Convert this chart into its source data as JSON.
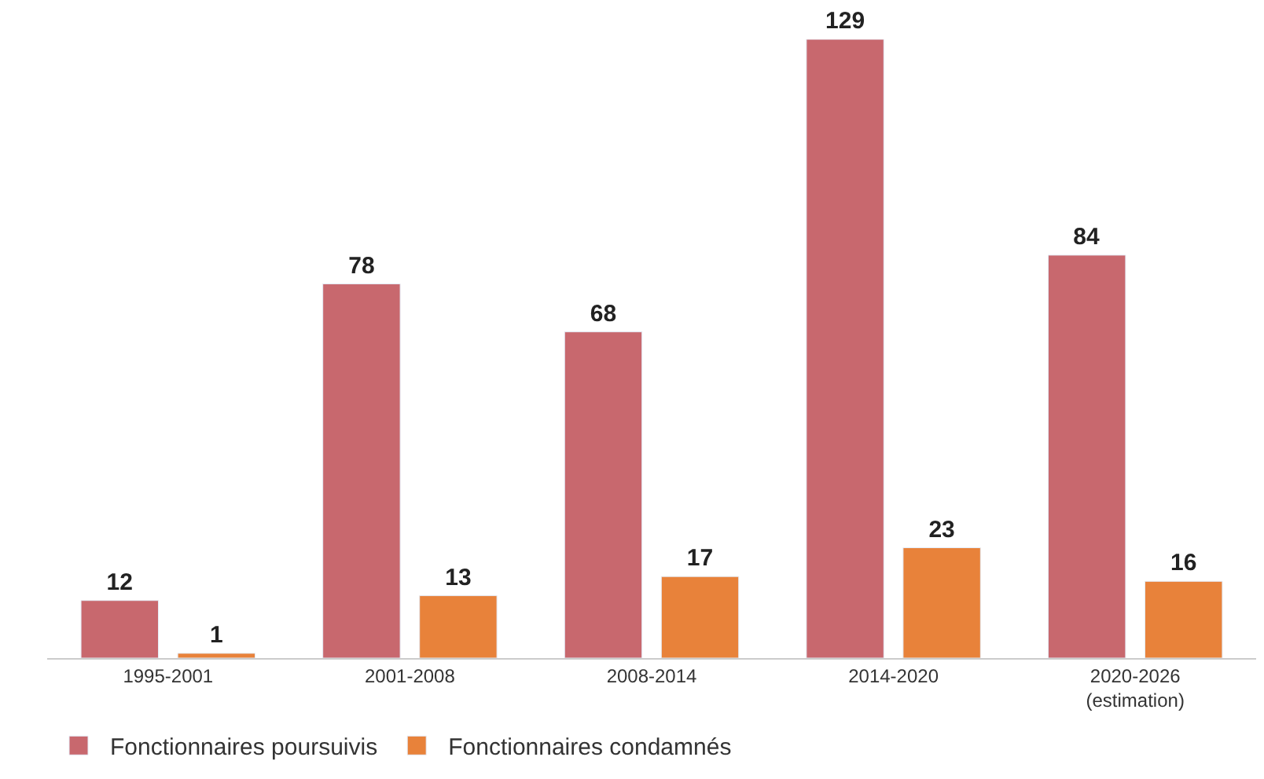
{
  "chart_data": {
    "type": "bar",
    "categories": [
      "1995-2001",
      "2001-2008",
      "2008-2014",
      "2014-2020",
      "2020-2026\n(estimation)"
    ],
    "series": [
      {
        "name": "Fonctionnaires poursuivis",
        "color": "#c8686e",
        "values": [
          12,
          78,
          68,
          129,
          84
        ]
      },
      {
        "name": "Fonctionnaires condamnés",
        "color": "#e8823a",
        "values": [
          1,
          13,
          17,
          23,
          16
        ]
      }
    ],
    "data_labels": true,
    "legend": "bottom left",
    "tick_labels": "x"
  }
}
